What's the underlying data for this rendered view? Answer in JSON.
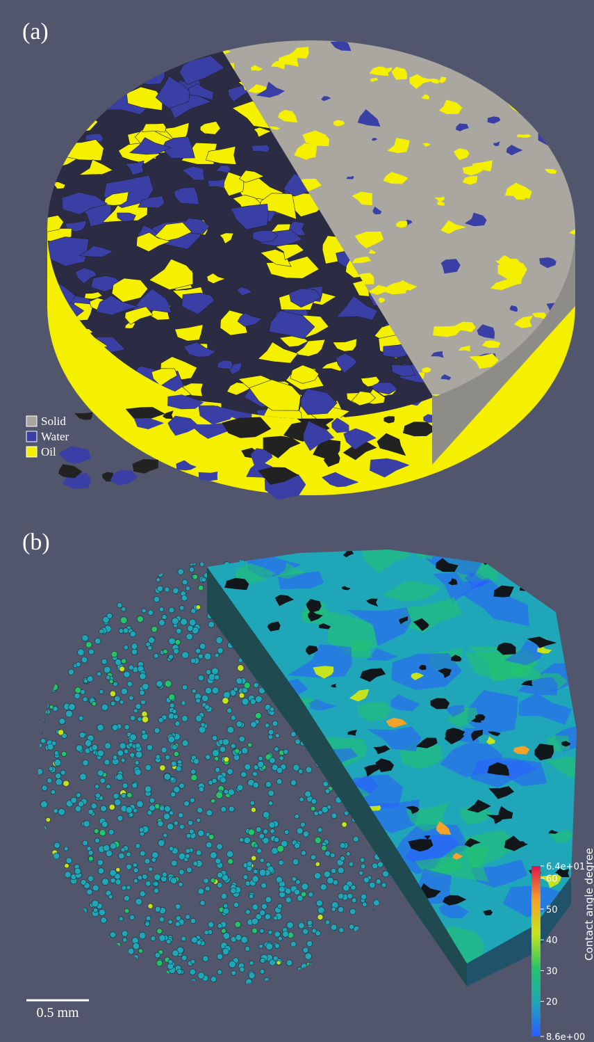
{
  "panels": [
    {
      "label": "(a)",
      "legend": [
        {
          "name": "Solid",
          "color": "#a9a79f"
        },
        {
          "name": "Water",
          "color": "#3a3fa6"
        },
        {
          "name": "Oil",
          "color": "#f4f000"
        }
      ]
    },
    {
      "label": "(b)",
      "colorbar": {
        "title": "Contact angle degree",
        "lim": [
          8.6,
          64
        ],
        "ticks": [
          {
            "value": 64,
            "label": "6.4e+01"
          },
          60,
          50,
          40,
          30,
          20,
          {
            "value": 8.6,
            "label": "8.6e+00"
          }
        ],
        "colors": [
          "#2a5cff",
          "#1fa6b8",
          "#23c46a",
          "#c6e41e",
          "#f4a22a",
          "#d8184f"
        ]
      },
      "scale_bar": "0.5 mm"
    }
  ]
}
